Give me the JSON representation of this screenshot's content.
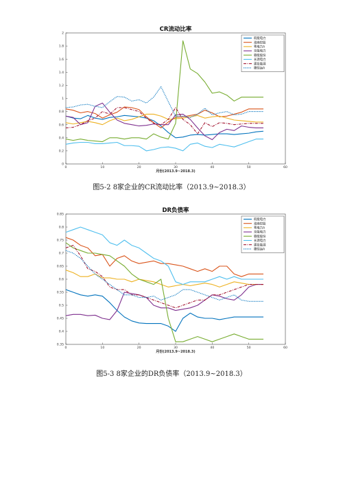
{
  "captions": [
    "图5-2 8家企业的CR流动比率（2013.9~2018.3）",
    "图5-3 8家企业的DR负债率（2013.9~2018.3）"
  ],
  "chart_data": [
    {
      "type": "line",
      "title": "CR流动比率",
      "xlabel": "月份(2013.9~2018.3)",
      "ylabel": "",
      "xlim": [
        0,
        60
      ],
      "ylim": [
        0,
        2
      ],
      "xticks": [
        0,
        10,
        20,
        30,
        40,
        50,
        60
      ],
      "yticks": [
        0,
        0.2,
        0.4,
        0.6,
        0.8,
        1,
        1.2,
        1.4,
        1.6,
        1.8,
        2
      ],
      "legend_position": "top-right",
      "x": [
        0,
        2,
        4,
        6,
        8,
        10,
        12,
        14,
        16,
        18,
        20,
        22,
        24,
        26,
        28,
        30,
        32,
        34,
        36,
        38,
        40,
        42,
        44,
        46,
        48,
        50,
        52,
        54
      ],
      "series": [
        {
          "name": "皖能电力",
          "color": "#0072bd",
          "dash": "",
          "values": [
            0.73,
            0.7,
            0.69,
            0.74,
            0.7,
            0.68,
            0.71,
            0.72,
            0.74,
            0.73,
            0.72,
            0.7,
            0.66,
            0.58,
            0.48,
            0.4,
            0.41,
            0.44,
            0.45,
            0.44,
            0.45,
            0.46,
            0.46,
            0.45,
            0.46,
            0.47,
            0.49,
            0.5
          ]
        },
        {
          "name": "淮南控股",
          "color": "#d95319",
          "dash": "",
          "values": [
            0.84,
            0.82,
            0.78,
            0.8,
            0.77,
            0.7,
            0.75,
            0.79,
            0.87,
            0.86,
            0.83,
            0.72,
            0.63,
            0.55,
            0.64,
            0.71,
            0.72,
            0.74,
            0.76,
            0.82,
            0.78,
            0.72,
            0.73,
            0.76,
            0.79,
            0.84,
            0.84,
            0.84
          ]
        },
        {
          "name": "粤电力A",
          "color": "#edb120",
          "dash": "",
          "values": [
            0.63,
            0.61,
            0.63,
            0.65,
            0.63,
            0.6,
            0.66,
            0.7,
            0.66,
            0.68,
            0.72,
            0.76,
            0.76,
            0.73,
            0.68,
            0.69,
            0.7,
            0.72,
            0.74,
            0.7,
            0.72,
            0.73,
            0.7,
            0.67,
            0.66,
            0.65,
            0.64,
            0.64
          ]
        },
        {
          "name": "京能电力",
          "color": "#7e2f8e",
          "dash": "",
          "values": [
            0.73,
            0.71,
            0.6,
            0.63,
            0.88,
            0.93,
            0.79,
            0.67,
            0.62,
            0.6,
            0.58,
            0.59,
            0.61,
            0.6,
            0.6,
            0.75,
            0.76,
            0.68,
            0.55,
            0.43,
            0.37,
            0.48,
            0.53,
            0.51,
            0.58,
            0.56,
            0.55,
            0.55
          ]
        },
        {
          "name": "赣能股份",
          "color": "#77ac30",
          "dash": "",
          "values": [
            0.38,
            0.36,
            0.38,
            0.36,
            0.35,
            0.34,
            0.4,
            0.4,
            0.38,
            0.4,
            0.4,
            0.38,
            0.46,
            0.41,
            0.38,
            0.62,
            1.88,
            1.45,
            1.38,
            1.25,
            1.08,
            1.1,
            1.05,
            0.96,
            1.02,
            1.02,
            1.02,
            1.02
          ]
        },
        {
          "name": "长源电力",
          "color": "#4dbeee",
          "dash": "",
          "values": [
            0.3,
            0.32,
            0.33,
            0.33,
            0.31,
            0.31,
            0.32,
            0.33,
            0.28,
            0.28,
            0.27,
            0.2,
            0.22,
            0.25,
            0.26,
            0.24,
            0.2,
            0.3,
            0.32,
            0.27,
            0.25,
            0.3,
            0.28,
            0.26,
            0.3,
            0.34,
            0.38,
            0.38
          ]
        },
        {
          "name": "建投能源",
          "color": "#a2142f",
          "dash": "4,1.5,1,1.5",
          "values": [
            0.55,
            0.56,
            0.6,
            0.66,
            0.7,
            0.8,
            0.76,
            0.86,
            0.86,
            0.83,
            0.8,
            0.7,
            0.62,
            0.6,
            0.68,
            0.86,
            0.68,
            0.6,
            0.46,
            0.63,
            0.57,
            0.63,
            0.62,
            0.6,
            0.61,
            0.62,
            0.62,
            0.62
          ]
        },
        {
          "name": "穗恒运A",
          "color": "#0072bd",
          "dash": "1.2,1.2",
          "values": [
            0.86,
            0.87,
            0.9,
            0.91,
            0.88,
            0.86,
            0.95,
            1.03,
            1.02,
            0.96,
            0.98,
            0.93,
            1.02,
            1.18,
            0.95,
            0.73,
            0.73,
            0.71,
            0.76,
            0.85,
            0.75,
            0.78,
            0.8,
            0.75,
            0.76,
            0.8,
            0.8,
            0.8
          ]
        }
      ]
    },
    {
      "type": "line",
      "title": "DR负债率",
      "xlabel": "月份(2013.9~2018.3)",
      "ylabel": "",
      "xlim": [
        0,
        60
      ],
      "ylim": [
        0.35,
        0.85
      ],
      "xticks": [
        0,
        10,
        20,
        30,
        40,
        50,
        60
      ],
      "yticks": [
        0.35,
        0.4,
        0.45,
        0.5,
        0.55,
        0.6,
        0.65,
        0.7,
        0.75,
        0.8,
        0.85
      ],
      "legend_position": "top-right",
      "x": [
        0,
        2,
        4,
        6,
        8,
        10,
        12,
        14,
        16,
        18,
        20,
        22,
        24,
        26,
        28,
        30,
        32,
        34,
        36,
        38,
        40,
        42,
        44,
        46,
        48,
        50,
        52,
        54
      ],
      "series": [
        {
          "name": "皖能电力",
          "color": "#0072bd",
          "dash": "",
          "values": [
            0.56,
            0.55,
            0.54,
            0.535,
            0.54,
            0.535,
            0.51,
            0.48,
            0.455,
            0.44,
            0.432,
            0.43,
            0.43,
            0.43,
            0.42,
            0.4,
            0.45,
            0.47,
            0.455,
            0.45,
            0.45,
            0.445,
            0.45,
            0.455,
            0.455,
            0.455,
            0.455,
            0.455
          ]
        },
        {
          "name": "淮南控股",
          "color": "#d95319",
          "dash": "",
          "values": [
            0.76,
            0.75,
            0.73,
            0.72,
            0.69,
            0.695,
            0.65,
            0.68,
            0.69,
            0.67,
            0.66,
            0.665,
            0.67,
            0.66,
            0.66,
            0.655,
            0.65,
            0.64,
            0.63,
            0.64,
            0.63,
            0.65,
            0.65,
            0.62,
            0.61,
            0.62,
            0.62,
            0.62
          ]
        },
        {
          "name": "粤电力A",
          "color": "#edb120",
          "dash": "",
          "values": [
            0.635,
            0.625,
            0.61,
            0.61,
            0.62,
            0.605,
            0.605,
            0.6,
            0.6,
            0.59,
            0.6,
            0.595,
            0.59,
            0.58,
            0.57,
            0.575,
            0.58,
            0.575,
            0.58,
            0.585,
            0.58,
            0.57,
            0.58,
            0.59,
            0.585,
            0.58,
            0.58,
            0.58
          ]
        },
        {
          "name": "京能电力",
          "color": "#7e2f8e",
          "dash": "",
          "values": [
            0.46,
            0.465,
            0.465,
            0.46,
            0.462,
            0.45,
            0.445,
            0.48,
            0.55,
            0.545,
            0.54,
            0.53,
            0.5,
            0.49,
            0.49,
            0.48,
            0.485,
            0.49,
            0.5,
            0.52,
            0.54,
            0.535,
            0.525,
            0.52,
            0.54,
            0.57,
            0.58,
            0.58
          ]
        },
        {
          "name": "赣能股份",
          "color": "#77ac30",
          "dash": "",
          "values": [
            0.74,
            0.72,
            0.71,
            0.7,
            0.7,
            0.695,
            0.69,
            0.67,
            0.65,
            0.62,
            0.6,
            0.59,
            0.58,
            0.6,
            0.45,
            0.36,
            0.36,
            0.37,
            0.38,
            0.37,
            0.36,
            0.37,
            0.38,
            0.39,
            0.38,
            0.37,
            0.37,
            0.37
          ]
        },
        {
          "name": "长源电力",
          "color": "#4dbeee",
          "dash": "",
          "values": [
            0.78,
            0.79,
            0.8,
            0.79,
            0.78,
            0.77,
            0.74,
            0.73,
            0.75,
            0.73,
            0.72,
            0.7,
            0.68,
            0.67,
            0.65,
            0.59,
            0.58,
            0.59,
            0.59,
            0.59,
            0.6,
            0.61,
            0.6,
            0.61,
            0.6,
            0.6,
            0.6,
            0.6
          ]
        },
        {
          "name": "建投能源",
          "color": "#a2142f",
          "dash": "4,1.5,1,1.5",
          "values": [
            0.72,
            0.73,
            0.69,
            0.64,
            0.63,
            0.61,
            0.57,
            0.56,
            0.56,
            0.54,
            0.54,
            0.53,
            0.52,
            0.51,
            0.5,
            0.49,
            0.5,
            0.51,
            0.52,
            0.52,
            0.54,
            0.54,
            0.55,
            0.56,
            0.57,
            0.58,
            0.58,
            0.58
          ]
        },
        {
          "name": "穗恒运A",
          "color": "#0072bd",
          "dash": "1.2,1.2",
          "values": [
            0.71,
            0.7,
            0.68,
            0.65,
            0.62,
            0.6,
            0.58,
            0.56,
            0.54,
            0.54,
            0.53,
            0.53,
            0.535,
            0.52,
            0.53,
            0.54,
            0.56,
            0.56,
            0.55,
            0.54,
            0.53,
            0.52,
            0.53,
            0.54,
            0.52,
            0.515,
            0.515,
            0.515
          ]
        }
      ]
    }
  ]
}
